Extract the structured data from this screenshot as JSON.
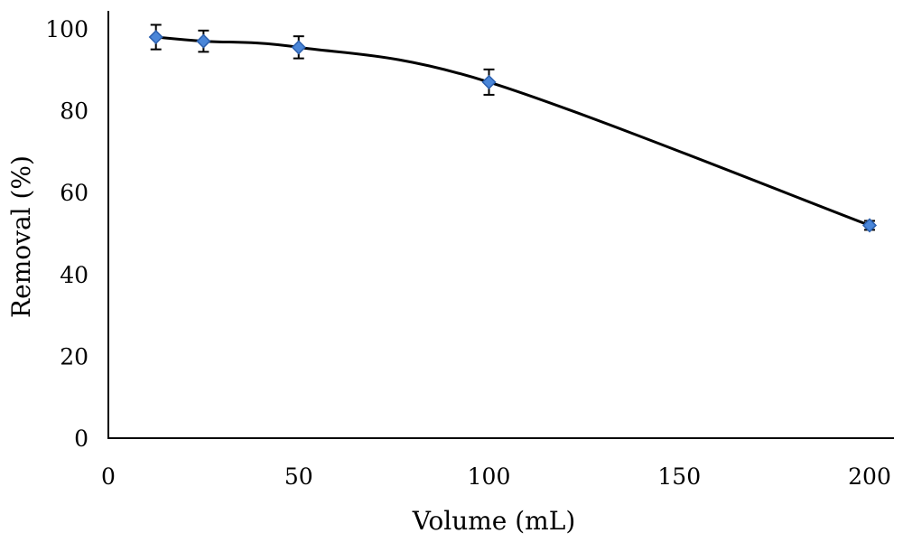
{
  "chart_data": {
    "type": "scatter",
    "xlabel": "Volume (mL)",
    "ylabel": "Removal (%)",
    "xlim": [
      0,
      200
    ],
    "ylim": [
      0,
      100
    ],
    "x_ticks": [
      0,
      50,
      100,
      150,
      200
    ],
    "y_ticks": [
      0,
      20,
      40,
      60,
      80,
      100
    ],
    "grid": false,
    "smooth_line": true,
    "error_bars": true,
    "series": [
      {
        "x": [
          12.5,
          25,
          50,
          100,
          200
        ],
        "y": [
          98,
          97,
          95.5,
          87,
          52
        ],
        "error": [
          3,
          2.6,
          2.7,
          3.1,
          1.1
        ],
        "marker_color": "#4a86d8",
        "marker_edge_color": "#2b5fae",
        "line_color": "#000000"
      }
    ]
  }
}
